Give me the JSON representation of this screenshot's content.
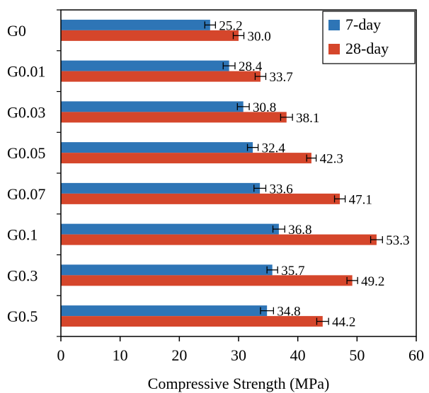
{
  "chart_data": {
    "type": "bar",
    "orientation": "horizontal",
    "categories": [
      "G0",
      "G0.01",
      "G0.03",
      "G0.05",
      "G0.07",
      "G0.1",
      "G0.3",
      "G0.5"
    ],
    "series": [
      {
        "name": "7-day",
        "color": "#2e75b6",
        "values": [
          25.2,
          28.4,
          30.8,
          32.4,
          33.6,
          36.8,
          35.7,
          34.8
        ],
        "errors": [
          0.9,
          1.0,
          1.0,
          0.9,
          1.0,
          1.0,
          0.9,
          1.1
        ],
        "labels": [
          "25.2",
          "28.4",
          "30.8",
          "32.4",
          "33.6",
          "36.8",
          "35.7",
          "34.8"
        ]
      },
      {
        "name": "28-day",
        "color": "#d5462b",
        "values": [
          30.0,
          33.7,
          38.1,
          42.3,
          47.1,
          53.3,
          49.2,
          44.2
        ],
        "errors": [
          0.9,
          0.9,
          1.0,
          0.8,
          0.9,
          1.0,
          0.9,
          1.0
        ],
        "labels": [
          "30.0",
          "33.7",
          "38.1",
          "42.3",
          "47.1",
          "53.3",
          "49.2",
          "44.2"
        ]
      }
    ],
    "xlabel": "Compressive Strength (MPa)",
    "ylabel": "",
    "xlim": [
      0,
      60
    ],
    "xticks": [
      "0",
      "10",
      "20",
      "30",
      "40",
      "50",
      "60"
    ],
    "grid": false,
    "legend_position": "top-right"
  }
}
